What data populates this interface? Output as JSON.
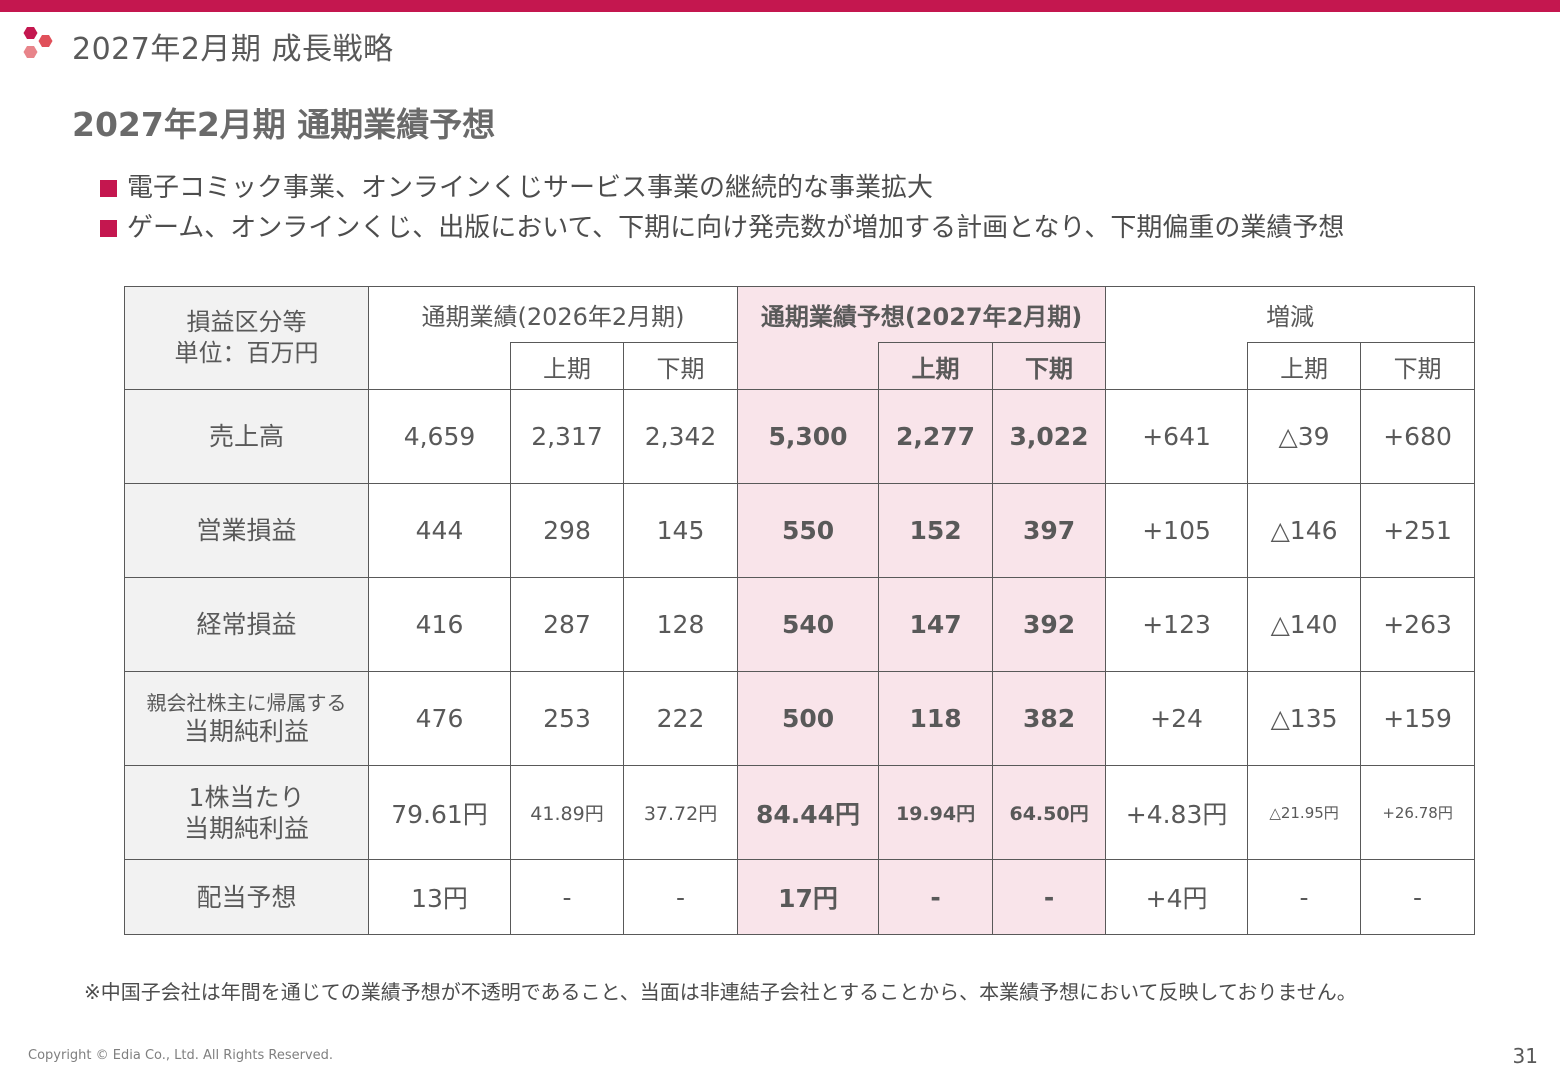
{
  "colors": {
    "accent": "#c4174f",
    "highlight": "#f9e4ea",
    "header_bg": "#f2f2f2",
    "text": "#595959"
  },
  "header": {
    "section_title": "2027年2月期 成長戦略",
    "logo": "hexagon-logo-icon"
  },
  "main": {
    "title": "2027年2月期 通期業績予想",
    "bullets": [
      "電子コミック事業、オンラインくじサービス事業の継続的な事業拡大",
      "ゲーム、オンラインくじ、出版において、下期に向け発売数が増加する計画となり、下期偏重の業績予想"
    ]
  },
  "table": {
    "label_header": [
      "損益区分等",
      "単位：百万円"
    ],
    "group_headers": {
      "actual": "通期業績(2026年2月期)",
      "forecast": "通期業績予想(2027年2月期)",
      "change": "増減"
    },
    "sub_headers": {
      "first_half": "上期",
      "second_half": "下期"
    },
    "rows": [
      {
        "label": "売上高",
        "values": [
          "4,659",
          "2,317",
          "2,342",
          "5,300",
          "2,277",
          "3,022",
          "+641",
          "△39",
          "+680"
        ]
      },
      {
        "label": "営業損益",
        "values": [
          "444",
          "298",
          "145",
          "550",
          "152",
          "397",
          "+105",
          "△146",
          "+251"
        ]
      },
      {
        "label": "経常損益",
        "values": [
          "416",
          "287",
          "128",
          "540",
          "147",
          "392",
          "+123",
          "△140",
          "+263"
        ]
      },
      {
        "label_line1": "親会社株主に帰属する",
        "label_line2": "当期純利益",
        "values": [
          "476",
          "253",
          "222",
          "500",
          "118",
          "382",
          "+24",
          "△135",
          "+159"
        ]
      },
      {
        "label_line1": "1株当たり",
        "label_line2": "当期純利益",
        "values": [
          "79.61円",
          "41.89円",
          "37.72円",
          "84.44円",
          "19.94円",
          "64.50円",
          "+4.83円",
          "△21.95円",
          "+26.78円"
        ]
      },
      {
        "label": "配当予想",
        "values": [
          "13円",
          "-",
          "-",
          "17円",
          "-",
          "-",
          "+4円",
          "-",
          "-"
        ]
      }
    ]
  },
  "footer": {
    "note": "※中国子会社は年間を通じての業績予想が不透明であること、当面は非連結子会社とすることから、本業績予想において反映しておりません。",
    "copyright": "Copyright © Edia Co., Ltd. All Rights Reserved.",
    "page_number": "31"
  }
}
